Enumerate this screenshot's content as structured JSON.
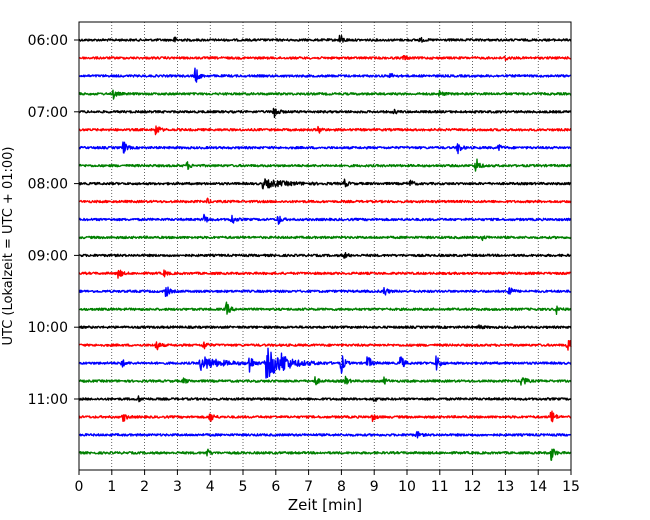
{
  "chart_data": {
    "type": "line",
    "subtype": "helicorder-seismogram",
    "xlabel": "Zeit  [min]",
    "ylabel": "UTC (Lokalzeit = UTC + 01:00)",
    "xlim": [
      0,
      15
    ],
    "x_ticks": [
      "0",
      "1",
      "2",
      "3",
      "4",
      "5",
      "6",
      "7",
      "8",
      "9",
      "10",
      "11",
      "12",
      "13",
      "14",
      "15"
    ],
    "y_ticks": [
      {
        "label": "06:00",
        "row": 0
      },
      {
        "label": "07:00",
        "row": 4
      },
      {
        "label": "08:00",
        "row": 8
      },
      {
        "label": "09:00",
        "row": 12
      },
      {
        "label": "10:00",
        "row": 16
      },
      {
        "label": "11:00",
        "row": 20
      }
    ],
    "vertical_grid": "dotted",
    "trace_colors": [
      "#000000",
      "#ff0000",
      "#0000ff",
      "#008000"
    ],
    "rows": [
      {
        "start": "06:00",
        "color": "#000000",
        "events": [
          {
            "t": 2.9,
            "amp": 1.0
          },
          {
            "t": 7.95,
            "amp": 2.2
          },
          {
            "t": 10.4,
            "amp": 0.8
          }
        ]
      },
      {
        "start": "06:15",
        "color": "#ff0000",
        "events": [
          {
            "t": 9.9,
            "amp": 0.9
          },
          {
            "t": 13.0,
            "amp": 0.9
          }
        ]
      },
      {
        "start": "06:30",
        "color": "#0000ff",
        "events": [
          {
            "t": 3.55,
            "amp": 3.0
          },
          {
            "t": 9.5,
            "amp": 0.9
          }
        ]
      },
      {
        "start": "06:45",
        "color": "#008000",
        "events": [
          {
            "t": 1.05,
            "amp": 1.6
          },
          {
            "t": 11.0,
            "amp": 1.0
          }
        ]
      },
      {
        "start": "07:00",
        "color": "#000000",
        "events": [
          {
            "t": 5.95,
            "amp": 3.0
          },
          {
            "t": 9.6,
            "amp": 0.7
          }
        ]
      },
      {
        "start": "07:15",
        "color": "#ff0000",
        "events": [
          {
            "t": 2.35,
            "amp": 2.2
          },
          {
            "t": 7.3,
            "amp": 1.2
          }
        ]
      },
      {
        "start": "07:30",
        "color": "#0000ff",
        "events": [
          {
            "t": 1.35,
            "amp": 2.4
          },
          {
            "t": 11.55,
            "amp": 2.2
          },
          {
            "t": 12.8,
            "amp": 1.0
          }
        ]
      },
      {
        "start": "07:45",
        "color": "#008000",
        "events": [
          {
            "t": 3.3,
            "amp": 1.3
          },
          {
            "t": 12.1,
            "amp": 3.2
          }
        ]
      },
      {
        "start": "08:00",
        "color": "#000000",
        "events": [
          {
            "t": 5.6,
            "amp": 1.4,
            "w": 0.6
          },
          {
            "t": 8.1,
            "amp": 1.3
          },
          {
            "t": 10.1,
            "amp": 1.2
          }
        ]
      },
      {
        "start": "08:15",
        "color": "#ff0000",
        "events": [
          {
            "t": 3.9,
            "amp": 0.9
          }
        ]
      },
      {
        "start": "08:30",
        "color": "#0000ff",
        "events": [
          {
            "t": 3.8,
            "amp": 1.8
          },
          {
            "t": 4.65,
            "amp": 2.0
          },
          {
            "t": 6.05,
            "amp": 2.3
          }
        ]
      },
      {
        "start": "08:45",
        "color": "#008000",
        "events": [
          {
            "t": 12.3,
            "amp": 0.7
          }
        ]
      },
      {
        "start": "09:00",
        "color": "#000000",
        "events": [
          {
            "t": 8.1,
            "amp": 1.0
          }
        ]
      },
      {
        "start": "09:15",
        "color": "#ff0000",
        "events": [
          {
            "t": 1.2,
            "amp": 1.8
          },
          {
            "t": 2.6,
            "amp": 1.0
          }
        ]
      },
      {
        "start": "09:30",
        "color": "#0000ff",
        "events": [
          {
            "t": 2.65,
            "amp": 2.2
          },
          {
            "t": 9.3,
            "amp": 1.8
          },
          {
            "t": 13.1,
            "amp": 2.2
          }
        ]
      },
      {
        "start": "09:45",
        "color": "#008000",
        "events": [
          {
            "t": 4.5,
            "amp": 2.3
          },
          {
            "t": 14.55,
            "amp": 1.5
          }
        ]
      },
      {
        "start": "10:00",
        "color": "#000000",
        "events": [
          {
            "t": 12.2,
            "amp": 0.8
          }
        ]
      },
      {
        "start": "10:15",
        "color": "#ff0000",
        "events": [
          {
            "t": 2.35,
            "amp": 2.0
          },
          {
            "t": 3.8,
            "amp": 1.5
          },
          {
            "t": 14.9,
            "amp": 2.8
          }
        ]
      },
      {
        "start": "10:30",
        "color": "#0000ff",
        "events": [
          {
            "t": 1.3,
            "amp": 1.5
          },
          {
            "t": 3.7,
            "amp": 2.4,
            "w": 0.5
          },
          {
            "t": 5.2,
            "amp": 3.5
          },
          {
            "t": 5.7,
            "amp": 5.2,
            "w": 0.5
          },
          {
            "t": 6.2,
            "amp": 2.5
          },
          {
            "t": 8.0,
            "amp": 3.5
          },
          {
            "t": 8.8,
            "amp": 3.0
          },
          {
            "t": 9.8,
            "amp": 3.2
          },
          {
            "t": 10.9,
            "amp": 3.0
          }
        ]
      },
      {
        "start": "10:45",
        "color": "#008000",
        "events": [
          {
            "t": 3.2,
            "amp": 0.9
          },
          {
            "t": 7.2,
            "amp": 1.5
          },
          {
            "t": 8.1,
            "amp": 1.8
          },
          {
            "t": 9.3,
            "amp": 1.0
          },
          {
            "t": 13.5,
            "amp": 3.0
          }
        ]
      },
      {
        "start": "11:00",
        "color": "#000000",
        "events": [
          {
            "t": 1.8,
            "amp": 1.0
          },
          {
            "t": 9.0,
            "amp": 0.8
          }
        ]
      },
      {
        "start": "11:15",
        "color": "#ff0000",
        "events": [
          {
            "t": 1.35,
            "amp": 1.6
          },
          {
            "t": 4.0,
            "amp": 2.0
          },
          {
            "t": 8.95,
            "amp": 1.2
          },
          {
            "t": 14.4,
            "amp": 2.8
          }
        ]
      },
      {
        "start": "11:30",
        "color": "#0000ff",
        "events": [
          {
            "t": 10.3,
            "amp": 1.2
          }
        ]
      },
      {
        "start": "11:45",
        "color": "#008000",
        "events": [
          {
            "t": 3.9,
            "amp": 1.4
          },
          {
            "t": 14.4,
            "amp": 2.8
          }
        ]
      }
    ]
  }
}
